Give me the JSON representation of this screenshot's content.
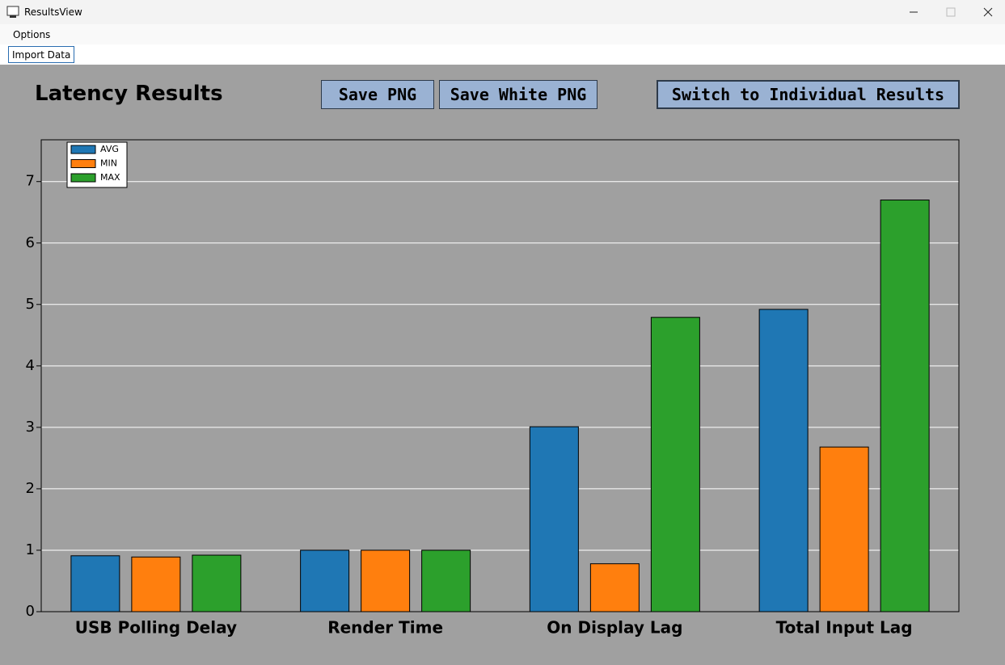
{
  "window": {
    "title": "ResultsView"
  },
  "menu": {
    "items": [
      "Options"
    ]
  },
  "toolbar": {
    "buttons": [
      "Import Data"
    ]
  },
  "header": {
    "title": "Latency Results",
    "buttons": [
      "Save PNG",
      "Save White PNG",
      "Switch to Individual Results"
    ]
  },
  "chart_data": {
    "type": "bar",
    "categories": [
      "USB Polling Delay",
      "Render Time",
      "On Display Lag",
      "Total Input Lag"
    ],
    "series": [
      {
        "name": "AVG",
        "color": "#1f77b4",
        "values": [
          0.91,
          1.0,
          3.01,
          4.92
        ]
      },
      {
        "name": "MIN",
        "color": "#ff7f0e",
        "values": [
          0.89,
          1.0,
          0.78,
          2.68
        ]
      },
      {
        "name": "MAX",
        "color": "#2ca02c",
        "values": [
          0.92,
          1.0,
          4.79,
          6.7
        ]
      }
    ],
    "ylim": [
      0,
      7.68
    ],
    "yticks": [
      0,
      1,
      2,
      3,
      4,
      5,
      6,
      7
    ],
    "grid": true,
    "legend": "upper-left"
  }
}
